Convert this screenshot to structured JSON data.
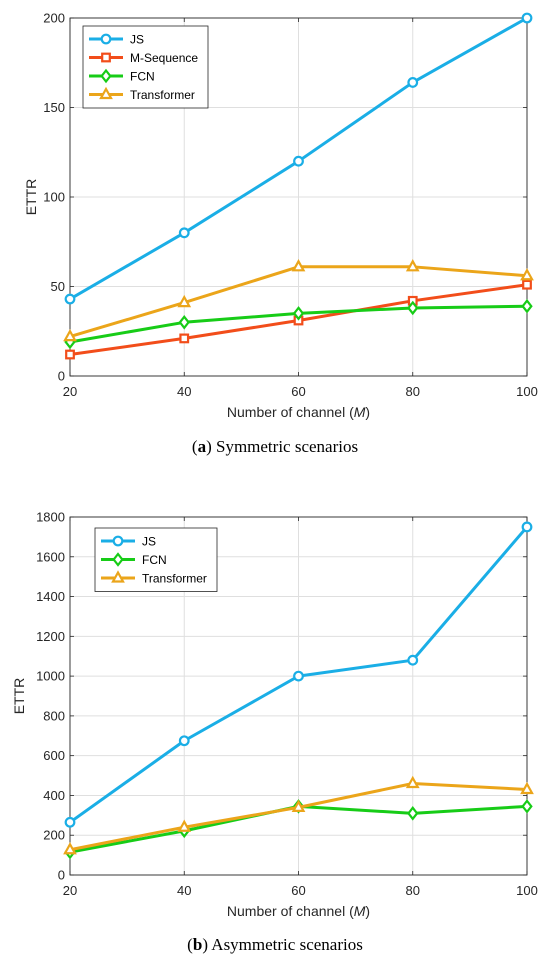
{
  "chart_data": [
    {
      "type": "line",
      "caption_letter": "a",
      "caption_text": " Symmetric scenarios",
      "xlabel": "Number of channel (",
      "xlabel_var": "M",
      "xlabel_end": ")",
      "ylabel": "ETTR",
      "x": [
        20,
        40,
        60,
        80,
        100
      ],
      "xlim": [
        20,
        100
      ],
      "ylim": [
        0,
        200
      ],
      "xticks": [
        "20",
        "40",
        "60",
        "80",
        "100"
      ],
      "yticks": [
        "0",
        "50",
        "100",
        "150",
        "200"
      ],
      "ytick_values": [
        0,
        50,
        100,
        150,
        200
      ],
      "grid": true,
      "legend_position": "top-left",
      "series": [
        {
          "name": "JS",
          "color": "#1aaee6",
          "marker": "circle",
          "values": [
            43,
            80,
            120,
            164,
            200
          ]
        },
        {
          "name": "M-Sequence",
          "color": "#f24d1a",
          "marker": "square",
          "values": [
            12,
            21,
            31,
            42,
            51
          ]
        },
        {
          "name": "FCN",
          "color": "#17cc17",
          "marker": "diamond",
          "values": [
            19,
            30,
            35,
            38,
            39
          ]
        },
        {
          "name": "Transformer",
          "color": "#eba51a",
          "marker": "triangle",
          "values": [
            22,
            41,
            61,
            61,
            56
          ]
        }
      ]
    },
    {
      "type": "line",
      "caption_letter": "b",
      "caption_text": " Asymmetric scenarios",
      "xlabel": "Number of channel (",
      "xlabel_var": "M",
      "xlabel_end": ")",
      "ylabel": "ETTR",
      "x": [
        20,
        40,
        60,
        80,
        100
      ],
      "xlim": [
        20,
        100
      ],
      "ylim": [
        0,
        1800
      ],
      "xticks": [
        "20",
        "40",
        "60",
        "80",
        "100"
      ],
      "yticks": [
        "0",
        "200",
        "400",
        "600",
        "800",
        "1000",
        "1200",
        "1400",
        "1600",
        "1800"
      ],
      "ytick_values": [
        0,
        200,
        400,
        600,
        800,
        1000,
        1200,
        1400,
        1600,
        1800
      ],
      "grid": true,
      "legend_position": "top-left",
      "series": [
        {
          "name": "JS",
          "color": "#1aaee6",
          "marker": "circle",
          "values": [
            265,
            675,
            1000,
            1080,
            1750
          ]
        },
        {
          "name": "FCN",
          "color": "#17cc17",
          "marker": "diamond",
          "values": [
            115,
            222,
            345,
            310,
            345
          ]
        },
        {
          "name": "Transformer",
          "color": "#eba51a",
          "marker": "triangle",
          "values": [
            127,
            240,
            340,
            460,
            430
          ]
        }
      ]
    }
  ]
}
